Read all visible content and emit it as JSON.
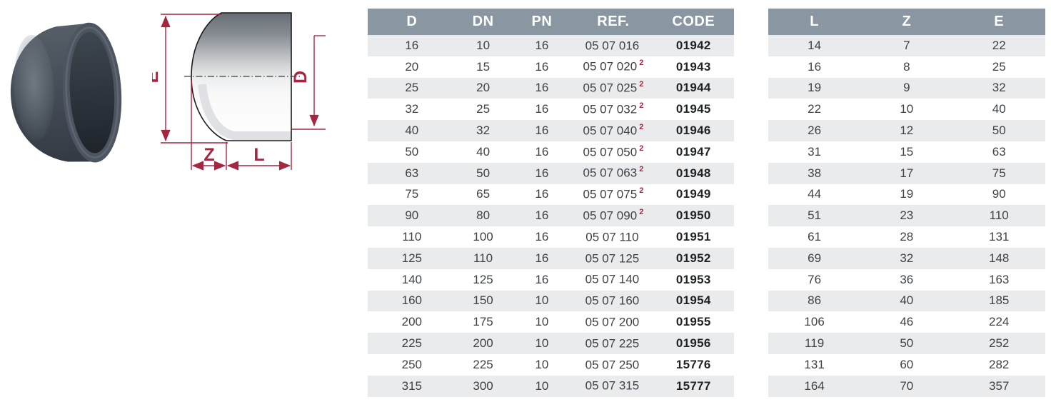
{
  "product": {
    "name": "PVC end cap"
  },
  "diagram": {
    "labels": {
      "e": "E",
      "d": "D",
      "z": "Z",
      "l": "L"
    },
    "dim_color": "#a32740"
  },
  "colors": {
    "header_bg": "#8a96a2",
    "row_alt": "#e9ebed",
    "text": "#3e4247",
    "code_text": "#1f2326",
    "footnote_red": "#a32740"
  },
  "spec_table": {
    "headers": [
      "D",
      "DN",
      "PN",
      "REF.",
      "CODE"
    ],
    "rows": [
      [
        "16",
        "10",
        "16",
        {
          "t": "05 07 016",
          "sup": ""
        },
        "01942"
      ],
      [
        "20",
        "15",
        "16",
        {
          "t": "05 07 020",
          "sup": "2"
        },
        "01943"
      ],
      [
        "25",
        "20",
        "16",
        {
          "t": "05 07 025",
          "sup": "2"
        },
        "01944"
      ],
      [
        "32",
        "25",
        "16",
        {
          "t": "05 07 032",
          "sup": "2"
        },
        "01945"
      ],
      [
        "40",
        "32",
        "16",
        {
          "t": "05 07 040",
          "sup": "2"
        },
        "01946"
      ],
      [
        "50",
        "40",
        "16",
        {
          "t": "05 07 050",
          "sup": "2"
        },
        "01947"
      ],
      [
        "63",
        "50",
        "16",
        {
          "t": "05 07 063",
          "sup": "2"
        },
        "01948"
      ],
      [
        "75",
        "65",
        "16",
        {
          "t": "05 07 075",
          "sup": "2"
        },
        "01949"
      ],
      [
        "90",
        "80",
        "16",
        {
          "t": "05 07 090",
          "sup": "2"
        },
        "01950"
      ],
      [
        "110",
        "100",
        "16",
        {
          "t": "05 07 110",
          "sup": ""
        },
        "01951"
      ],
      [
        "125",
        "110",
        "16",
        {
          "t": "05 07 125",
          "sup": ""
        },
        "01952"
      ],
      [
        "140",
        "125",
        "16",
        {
          "t": "05 07 140",
          "sup": ""
        },
        "01953"
      ],
      [
        "160",
        "150",
        "10",
        {
          "t": "05 07 160",
          "sup": ""
        },
        "01954"
      ],
      [
        "200",
        "175",
        "10",
        {
          "t": "05 07 200",
          "sup": ""
        },
        "01955"
      ],
      [
        "225",
        "200",
        "10",
        {
          "t": "05 07 225",
          "sup": ""
        },
        "01956"
      ],
      [
        "250",
        "225",
        "10",
        {
          "t": "05 07 250",
          "sup": ""
        },
        "15776"
      ],
      [
        "315",
        "300",
        "10",
        {
          "t": "05 07 315",
          "sup": ""
        },
        "15777"
      ]
    ]
  },
  "dims_table": {
    "headers": [
      "L",
      "Z",
      "E"
    ],
    "rows": [
      [
        "14",
        "7",
        "22"
      ],
      [
        "16",
        "8",
        "25"
      ],
      [
        "19",
        "9",
        "32"
      ],
      [
        "22",
        "10",
        "40"
      ],
      [
        "26",
        "12",
        "50"
      ],
      [
        "31",
        "15",
        "63"
      ],
      [
        "38",
        "17",
        "75"
      ],
      [
        "44",
        "19",
        "90"
      ],
      [
        "51",
        "23",
        "110"
      ],
      [
        "61",
        "28",
        "131"
      ],
      [
        "69",
        "32",
        "148"
      ],
      [
        "76",
        "36",
        "163"
      ],
      [
        "86",
        "40",
        "185"
      ],
      [
        "106",
        "46",
        "224"
      ],
      [
        "119",
        "50",
        "252"
      ],
      [
        "131",
        "60",
        "282"
      ],
      [
        "164",
        "70",
        "357"
      ]
    ]
  }
}
